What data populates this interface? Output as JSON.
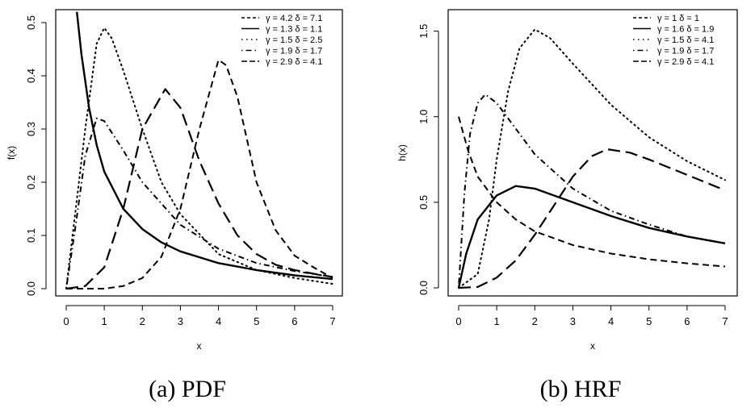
{
  "captions": [
    "(a) PDF",
    "(b) HRF"
  ],
  "chart_data": [
    {
      "type": "line",
      "xlabel": "x",
      "ylabel": "f(x)",
      "xlim": [
        0,
        7
      ],
      "ylim": [
        0,
        0.5
      ],
      "xticks": [
        "0",
        "1",
        "2",
        "3",
        "4",
        "5",
        "6",
        "7"
      ],
      "yticks": [
        "0.0",
        "0.1",
        "0.2",
        "0.3",
        "0.4",
        "0.5"
      ],
      "grid": false,
      "legend_position": "top-right",
      "series": [
        {
          "name": "γ = 4.2  δ = 7.1",
          "style": "dashed",
          "points": [
            [
              0,
              0
            ],
            [
              0.5,
              0
            ],
            [
              1,
              0
            ],
            [
              1.5,
              0.005
            ],
            [
              2,
              0.02
            ],
            [
              2.5,
              0.06
            ],
            [
              3,
              0.15
            ],
            [
              3.5,
              0.3
            ],
            [
              4,
              0.43
            ],
            [
              4.2,
              0.42
            ],
            [
              4.5,
              0.36
            ],
            [
              5,
              0.2
            ],
            [
              5.5,
              0.11
            ],
            [
              6,
              0.062
            ],
            [
              6.5,
              0.04
            ],
            [
              7,
              0.02
            ]
          ]
        },
        {
          "name": "γ = 1.3  δ = 1.1",
          "style": "solid",
          "points": [
            [
              0.28,
              0.52
            ],
            [
              0.4,
              0.44
            ],
            [
              0.6,
              0.34
            ],
            [
              0.8,
              0.27
            ],
            [
              1,
              0.22
            ],
            [
              1.5,
              0.15
            ],
            [
              2,
              0.112
            ],
            [
              2.5,
              0.087
            ],
            [
              3,
              0.07
            ],
            [
              4,
              0.048
            ],
            [
              5,
              0.035
            ],
            [
              6,
              0.025
            ],
            [
              7,
              0.018
            ]
          ]
        },
        {
          "name": "γ = 1.5  δ = 2.5",
          "style": "dotted",
          "points": [
            [
              0,
              0
            ],
            [
              0.5,
              0.3
            ],
            [
              0.8,
              0.46
            ],
            [
              1,
              0.49
            ],
            [
              1.2,
              0.47
            ],
            [
              1.5,
              0.41
            ],
            [
              2,
              0.3
            ],
            [
              2.5,
              0.2
            ],
            [
              3,
              0.14
            ],
            [
              4,
              0.065
            ],
            [
              5,
              0.035
            ],
            [
              6,
              0.02
            ],
            [
              7,
              0.009
            ]
          ]
        },
        {
          "name": "γ = 1.9  δ = 1.7",
          "style": "dotdash",
          "points": [
            [
              0,
              0
            ],
            [
              0.25,
              0.12
            ],
            [
              0.5,
              0.25
            ],
            [
              0.8,
              0.32
            ],
            [
              1,
              0.315
            ],
            [
              1.5,
              0.26
            ],
            [
              2,
              0.2
            ],
            [
              3,
              0.12
            ],
            [
              4,
              0.075
            ],
            [
              5,
              0.048
            ],
            [
              6,
              0.033
            ],
            [
              7,
              0.022
            ]
          ]
        },
        {
          "name": "γ = 2.9  δ = 4.1",
          "style": "longdash",
          "points": [
            [
              0,
              0
            ],
            [
              0.5,
              0.005
            ],
            [
              1,
              0.04
            ],
            [
              1.5,
              0.15
            ],
            [
              2,
              0.3
            ],
            [
              2.6,
              0.375
            ],
            [
              3,
              0.34
            ],
            [
              3.5,
              0.24
            ],
            [
              4,
              0.16
            ],
            [
              4.5,
              0.1
            ],
            [
              5,
              0.065
            ],
            [
              5.5,
              0.045
            ],
            [
              6,
              0.035
            ],
            [
              6.5,
              0.028
            ],
            [
              7,
              0.022
            ]
          ]
        }
      ]
    },
    {
      "type": "line",
      "xlabel": "x",
      "ylabel": "h(x)",
      "xlim": [
        0,
        7
      ],
      "ylim": [
        0,
        1.55
      ],
      "xticks": [
        "0",
        "1",
        "2",
        "3",
        "4",
        "5",
        "6",
        "7"
      ],
      "yticks": [
        "0.0",
        "0.5",
        "1.0",
        "1.5"
      ],
      "grid": false,
      "legend_position": "top-right",
      "series": [
        {
          "name": "γ = 1      δ = 1",
          "style": "dashed",
          "points": [
            [
              0,
              1.0
            ],
            [
              0.25,
              0.8
            ],
            [
              0.5,
              0.65
            ],
            [
              1,
              0.5
            ],
            [
              1.5,
              0.4
            ],
            [
              2,
              0.33
            ],
            [
              3,
              0.25
            ],
            [
              4,
              0.2
            ],
            [
              5,
              0.167
            ],
            [
              6,
              0.143
            ],
            [
              7,
              0.125
            ]
          ]
        },
        {
          "name": "γ = 1.6  δ = 1.9",
          "style": "solid",
          "points": [
            [
              0,
              0
            ],
            [
              0.2,
              0.2
            ],
            [
              0.5,
              0.4
            ],
            [
              1,
              0.54
            ],
            [
              1.5,
              0.595
            ],
            [
              2,
              0.58
            ],
            [
              3,
              0.5
            ],
            [
              4,
              0.42
            ],
            [
              5,
              0.35
            ],
            [
              6,
              0.3
            ],
            [
              7,
              0.26
            ]
          ]
        },
        {
          "name": "γ = 1.5  δ = 4.1",
          "style": "dotted",
          "points": [
            [
              0,
              0
            ],
            [
              0.5,
              0.08
            ],
            [
              0.8,
              0.4
            ],
            [
              1,
              0.75
            ],
            [
              1.3,
              1.15
            ],
            [
              1.6,
              1.4
            ],
            [
              2,
              1.51
            ],
            [
              2.4,
              1.46
            ],
            [
              3,
              1.31
            ],
            [
              4,
              1.07
            ],
            [
              5,
              0.88
            ],
            [
              6,
              0.74
            ],
            [
              7,
              0.63
            ]
          ]
        },
        {
          "name": "γ = 1.9  δ = 1.7",
          "style": "dotdash",
          "points": [
            [
              0,
              0
            ],
            [
              0.15,
              0.55
            ],
            [
              0.3,
              0.9
            ],
            [
              0.5,
              1.08
            ],
            [
              0.7,
              1.13
            ],
            [
              1,
              1.08
            ],
            [
              1.5,
              0.93
            ],
            [
              2,
              0.78
            ],
            [
              3,
              0.58
            ],
            [
              4,
              0.45
            ],
            [
              5,
              0.37
            ],
            [
              6,
              0.3
            ],
            [
              7,
              0.26
            ]
          ]
        },
        {
          "name": "γ = 2.9  δ = 4.1",
          "style": "longdash",
          "points": [
            [
              0,
              0
            ],
            [
              0.5,
              0.005
            ],
            [
              1,
              0.06
            ],
            [
              1.5,
              0.16
            ],
            [
              2,
              0.31
            ],
            [
              2.5,
              0.48
            ],
            [
              3,
              0.65
            ],
            [
              3.5,
              0.77
            ],
            [
              3.9,
              0.81
            ],
            [
              4.5,
              0.79
            ],
            [
              5,
              0.75
            ],
            [
              6,
              0.66
            ],
            [
              7,
              0.57
            ]
          ]
        }
      ]
    }
  ]
}
